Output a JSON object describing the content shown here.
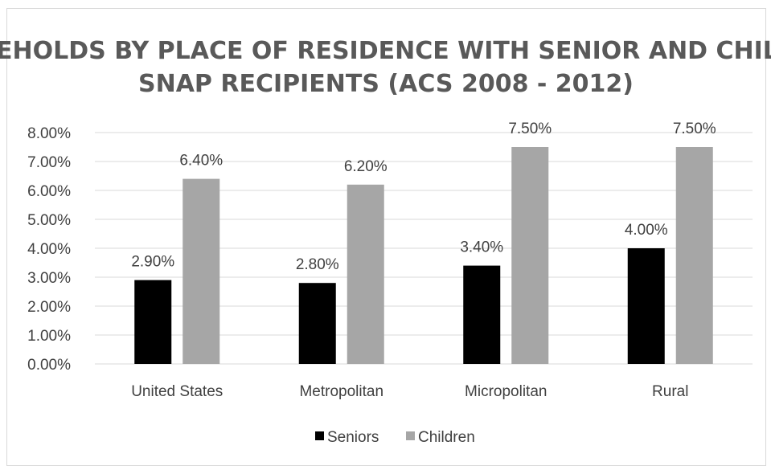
{
  "chart_data": {
    "type": "bar",
    "title_lines": [
      "HOUSEHOLDS BY PLACE OF RESIDENCE WITH SENIOR AND CHILDREN",
      "SNAP RECIPIENTS (ACS 2008 - 2012)"
    ],
    "categories": [
      "United States",
      "Metropolitan",
      "Micropolitan",
      "Rural"
    ],
    "series": [
      {
        "name": "Seniors",
        "values": [
          2.9,
          2.8,
          3.4,
          4.0
        ],
        "labels": [
          "2.90%",
          "2.80%",
          "3.40%",
          "4.00%"
        ],
        "color": "#000000"
      },
      {
        "name": "Children",
        "values": [
          6.4,
          6.2,
          7.5,
          7.5
        ],
        "labels": [
          "6.40%",
          "6.20%",
          "7.50%",
          "7.50%"
        ],
        "color": "#a6a6a6"
      }
    ],
    "ylim": [
      0,
      8
    ],
    "yticks": [
      0,
      1,
      2,
      3,
      4,
      5,
      6,
      7,
      8
    ],
    "ytick_labels": [
      "0.00%",
      "1.00%",
      "2.00%",
      "3.00%",
      "4.00%",
      "5.00%",
      "6.00%",
      "7.00%",
      "8.00%"
    ],
    "grid": true,
    "legend_position": "bottom"
  }
}
